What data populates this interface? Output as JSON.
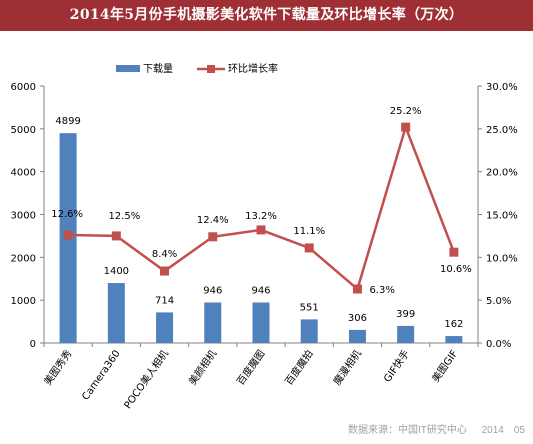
{
  "header": {
    "title": "2014年5月份手机摄影美化软件下载量及环比增长率（万次）"
  },
  "footer": {
    "source": "数据来源：中国IT研究中心",
    "date": "2014　05"
  },
  "colors": {
    "banner": "#9d2f35",
    "bar": "#4f81bd",
    "line": "#c0504d"
  },
  "chart_data": {
    "type": "bar",
    "title": "2014年5月份手机摄影美化软件下载量及环比增长率（万次）",
    "categories": [
      "美图秀秀",
      "Camera360",
      "POCO美人相机",
      "美颜相机",
      "百度魔图",
      "百度魔拍",
      "魔漫相机",
      "GIF快手",
      "美图GIF"
    ],
    "y_left": {
      "min": 0,
      "max": 6000,
      "ticks": [
        0,
        1000,
        2000,
        3000,
        4000,
        5000,
        6000
      ],
      "tick_labels": [
        "0",
        "1000",
        "2000",
        "3000",
        "4000",
        "5000",
        "6000"
      ]
    },
    "y_right": {
      "min": 0,
      "max": 30,
      "ticks": [
        0,
        5,
        10,
        15,
        20,
        25,
        30
      ],
      "tick_labels": [
        "0.0%",
        "5.0%",
        "10.0%",
        "15.0%",
        "20.0%",
        "25.0%",
        "30.0%"
      ]
    },
    "series": [
      {
        "name": "下载量",
        "type": "bar",
        "axis": "left",
        "values": [
          4899,
          1400,
          714,
          946,
          946,
          551,
          306,
          399,
          162
        ],
        "labels": [
          "4899",
          "1400",
          "714",
          "946",
          "946",
          "551",
          "306",
          "399",
          "162"
        ]
      },
      {
        "name": "环比增长率",
        "type": "line",
        "axis": "right",
        "values": [
          12.6,
          12.5,
          8.4,
          12.4,
          13.2,
          11.1,
          6.3,
          25.2,
          10.6
        ],
        "labels": [
          "12.6%",
          "12.5%",
          "8.4%",
          "12.4%",
          "13.2%",
          "11.1%",
          "6.3%",
          "25.2%",
          "10.6%"
        ]
      }
    ],
    "legend": "top-center",
    "grid": false
  }
}
